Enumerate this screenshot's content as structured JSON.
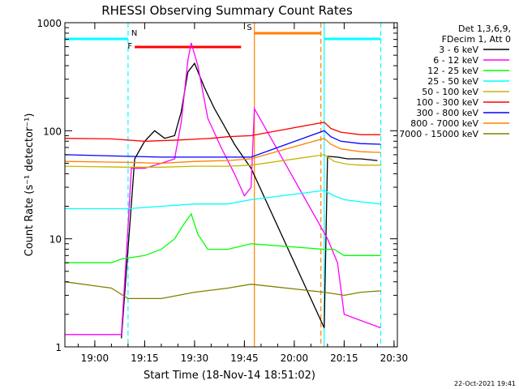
{
  "chart_data": {
    "type": "line",
    "title": "RHESSI Observing Summary Count Rates",
    "xlabel": "Start Time (18-Nov-14 18:51:02)",
    "ylabel": "Count Rate (s⁻¹ detector⁻¹)",
    "y_scale": "log",
    "ylim": [
      1,
      1000
    ],
    "xlim": [
      "18:51",
      "20:31"
    ],
    "x_ticks": [
      "19:00",
      "19:15",
      "19:30",
      "19:45",
      "20:00",
      "20:15",
      "20:30"
    ],
    "y_ticks": [
      "1",
      "10",
      "100",
      "1000"
    ],
    "legend_title": [
      "Det 1,3,6,9,",
      "FDecim 1, Att 0"
    ],
    "footer": "22-Oct-2021 19:41",
    "flags": [
      {
        "label": "N",
        "color": "#00ffff",
        "segments": [
          [
            "18:51",
            "19:10"
          ],
          [
            "20:09",
            "20:26"
          ]
        ]
      },
      {
        "label": "F",
        "color": "#ff0000",
        "segments": [
          [
            "19:12",
            "19:44"
          ]
        ]
      },
      {
        "label": "S",
        "color": "#ff8000",
        "segments": [
          [
            "19:48",
            "20:08"
          ]
        ]
      }
    ],
    "vlines": [
      {
        "t": "19:10",
        "color": "#00ffff",
        "style": "dashed"
      },
      {
        "t": "20:09",
        "color": "#00ffff",
        "style": "solid"
      },
      {
        "t": "20:26",
        "color": "#00ffff",
        "style": "dashed"
      },
      {
        "t": "19:48",
        "color": "#ff8000",
        "style": "solid"
      },
      {
        "t": "20:08",
        "color": "#ff8000",
        "style": "dashed"
      }
    ],
    "series": [
      {
        "name": "3 - 6 keV",
        "color": "#000000",
        "points": [
          [
            "19:08",
            1.2
          ],
          [
            "19:12",
            55
          ],
          [
            "19:15",
            80
          ],
          [
            "19:18",
            100
          ],
          [
            "19:21",
            85
          ],
          [
            "19:24",
            90
          ],
          [
            "19:26",
            150
          ],
          [
            "19:28",
            350
          ],
          [
            "19:30",
            420
          ],
          [
            "19:33",
            250
          ],
          [
            "19:36",
            160
          ],
          [
            "19:39",
            110
          ],
          [
            "19:42",
            75
          ],
          [
            "19:45",
            55
          ],
          [
            "19:47",
            45
          ],
          [
            "20:09",
            1.5
          ],
          [
            "20:10",
            58
          ],
          [
            "20:13",
            57
          ],
          [
            "20:16",
            55
          ],
          [
            "20:20",
            55
          ],
          [
            "20:25",
            53
          ]
        ]
      },
      {
        "name": "6 - 12 keV",
        "color": "#ff00ff",
        "points": [
          [
            "18:51",
            1.3
          ],
          [
            "19:08",
            1.3
          ],
          [
            "19:10",
            13
          ],
          [
            "19:11",
            45
          ],
          [
            "19:15",
            45
          ],
          [
            "19:20",
            50
          ],
          [
            "19:24",
            55
          ],
          [
            "19:26",
            120
          ],
          [
            "19:28",
            450
          ],
          [
            "19:29",
            650
          ],
          [
            "19:31",
            400
          ],
          [
            "19:34",
            130
          ],
          [
            "19:38",
            70
          ],
          [
            "19:42",
            40
          ],
          [
            "19:45",
            25
          ],
          [
            "19:47",
            30
          ],
          [
            "19:48",
            160
          ],
          [
            "20:10",
            10
          ],
          [
            "20:13",
            6
          ],
          [
            "20:15",
            2
          ],
          [
            "20:26",
            1.5
          ]
        ]
      },
      {
        "name": "12 - 25 keV",
        "color": "#00ff00",
        "points": [
          [
            "18:51",
            6
          ],
          [
            "19:05",
            6
          ],
          [
            "19:08",
            6.5
          ],
          [
            "19:15",
            7
          ],
          [
            "19:20",
            8
          ],
          [
            "19:24",
            10
          ],
          [
            "19:27",
            14
          ],
          [
            "19:29",
            17
          ],
          [
            "19:31",
            11
          ],
          [
            "19:34",
            8
          ],
          [
            "19:40",
            8
          ],
          [
            "19:47",
            9
          ],
          [
            "20:09",
            8
          ],
          [
            "20:12",
            8
          ],
          [
            "20:15",
            7
          ],
          [
            "20:20",
            7
          ],
          [
            "20:26",
            7
          ]
        ]
      },
      {
        "name": "25 - 50 keV",
        "color": "#00ffff",
        "points": [
          [
            "18:51",
            19
          ],
          [
            "19:10",
            19
          ],
          [
            "19:20",
            20
          ],
          [
            "19:30",
            21
          ],
          [
            "19:40",
            21
          ],
          [
            "19:47",
            23
          ],
          [
            "20:09",
            28
          ],
          [
            "20:12",
            25
          ],
          [
            "20:15",
            23
          ],
          [
            "20:20",
            22
          ],
          [
            "20:26",
            21
          ]
        ]
      },
      {
        "name": "50 - 100 keV",
        "color": "#c8b400",
        "points": [
          [
            "18:51",
            47
          ],
          [
            "19:10",
            46
          ],
          [
            "19:20",
            46
          ],
          [
            "19:30",
            47
          ],
          [
            "19:40",
            47
          ],
          [
            "19:47",
            48
          ],
          [
            "20:09",
            60
          ],
          [
            "20:12",
            52
          ],
          [
            "20:16",
            49
          ],
          [
            "20:20",
            48
          ],
          [
            "20:26",
            48
          ]
        ]
      },
      {
        "name": "100 - 300 keV",
        "color": "#ff0000",
        "points": [
          [
            "18:51",
            85
          ],
          [
            "19:05",
            84
          ],
          [
            "19:15",
            80
          ],
          [
            "19:25",
            82
          ],
          [
            "19:35",
            85
          ],
          [
            "19:40",
            88
          ],
          [
            "19:47",
            90
          ],
          [
            "20:09",
            120
          ],
          [
            "20:11",
            105
          ],
          [
            "20:14",
            97
          ],
          [
            "20:20",
            92
          ],
          [
            "20:26",
            92
          ]
        ]
      },
      {
        "name": "300 - 800 keV",
        "color": "#0000ff",
        "points": [
          [
            "18:51",
            60
          ],
          [
            "19:10",
            58
          ],
          [
            "19:20",
            57
          ],
          [
            "19:30",
            57
          ],
          [
            "19:40",
            57
          ],
          [
            "19:47",
            57
          ],
          [
            "20:09",
            100
          ],
          [
            "20:11",
            88
          ],
          [
            "20:14",
            80
          ],
          [
            "20:20",
            76
          ],
          [
            "20:26",
            75
          ]
        ]
      },
      {
        "name": "800 - 7000 keV",
        "color": "#ff8000",
        "points": [
          [
            "18:51",
            52
          ],
          [
            "19:10",
            51
          ],
          [
            "19:20",
            50
          ],
          [
            "19:30",
            52
          ],
          [
            "19:40",
            53
          ],
          [
            "19:47",
            55
          ],
          [
            "20:09",
            85
          ],
          [
            "20:11",
            75
          ],
          [
            "20:14",
            68
          ],
          [
            "20:20",
            64
          ],
          [
            "20:26",
            63
          ]
        ]
      },
      {
        "name": "7000 - 15000 keV",
        "color": "#808000",
        "points": [
          [
            "18:51",
            4
          ],
          [
            "19:05",
            3.5
          ],
          [
            "19:10",
            2.8
          ],
          [
            "19:20",
            2.8
          ],
          [
            "19:30",
            3.2
          ],
          [
            "19:40",
            3.5
          ],
          [
            "19:47",
            3.8
          ],
          [
            "20:09",
            3.2
          ],
          [
            "20:15",
            3.0
          ],
          [
            "20:20",
            3.2
          ],
          [
            "20:26",
            3.3
          ]
        ]
      }
    ]
  }
}
